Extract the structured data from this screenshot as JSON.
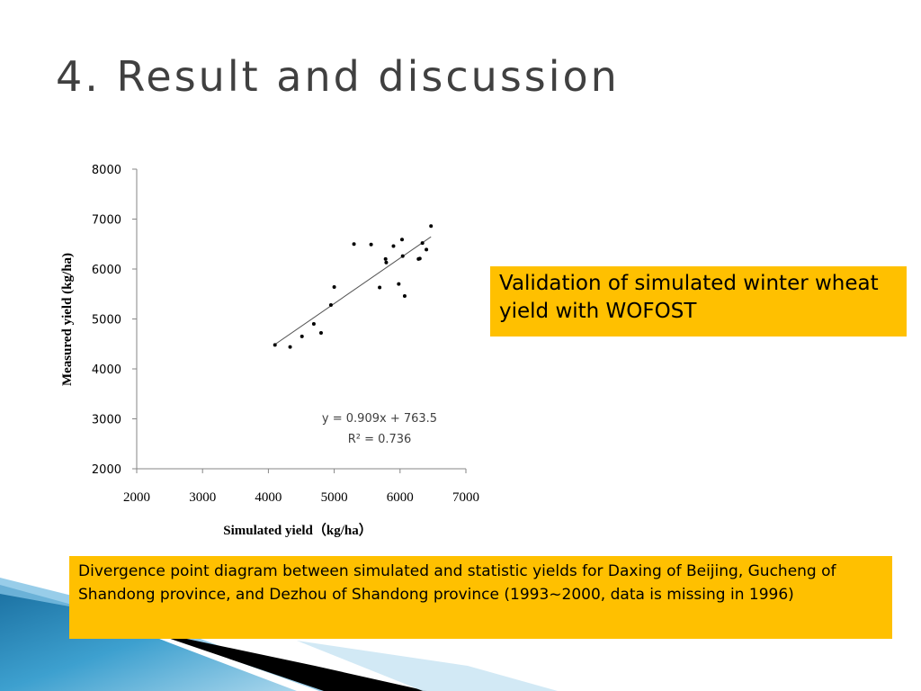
{
  "slide": {
    "title": "4. Result and discussion",
    "note": "Validation of simulated winter wheat yield with WOFOST",
    "caption": "Divergence point diagram between simulated and statistic yields for Daxing of Beijing, Gucheng of Shandong province, and Dezhou of Shandong province (1993~2000, data is missing in 1996)"
  },
  "colors": {
    "highlight_box": "#ffc000",
    "title_text": "#404040",
    "decor_blue": "#2b8ab8",
    "decor_black": "#000000"
  },
  "chart_data": {
    "type": "scatter",
    "title": "",
    "xlabel": "Simulated yield（kg/ha）",
    "ylabel": "Measured yield (kg/ha)",
    "xlim": [
      2000,
      7000
    ],
    "ylim": [
      2000,
      8000
    ],
    "xticks": [
      2000,
      3000,
      4000,
      5000,
      6000,
      7000
    ],
    "yticks": [
      2000,
      3000,
      4000,
      5000,
      6000,
      7000,
      8000
    ],
    "x_tick_labels": [
      "2000",
      "3000",
      "4000",
      "5000",
      "6000",
      "7000"
    ],
    "y_tick_labels": [
      "2000",
      "3000",
      "4000",
      "5000",
      "6000",
      "7000",
      "8000"
    ],
    "grid": false,
    "legend": "none",
    "points": [
      {
        "x": 4100,
        "y": 4480
      },
      {
        "x": 4330,
        "y": 4440
      },
      {
        "x": 4510,
        "y": 4650
      },
      {
        "x": 4690,
        "y": 4900
      },
      {
        "x": 4800,
        "y": 4720
      },
      {
        "x": 4950,
        "y": 5280
      },
      {
        "x": 5000,
        "y": 5640
      },
      {
        "x": 5300,
        "y": 6500
      },
      {
        "x": 5560,
        "y": 6490
      },
      {
        "x": 5690,
        "y": 5630
      },
      {
        "x": 5780,
        "y": 6200
      },
      {
        "x": 5790,
        "y": 6130
      },
      {
        "x": 5900,
        "y": 6460
      },
      {
        "x": 5980,
        "y": 5700
      },
      {
        "x": 6030,
        "y": 6590
      },
      {
        "x": 6040,
        "y": 6260
      },
      {
        "x": 6070,
        "y": 5460
      },
      {
        "x": 6280,
        "y": 6200
      },
      {
        "x": 6300,
        "y": 6210
      },
      {
        "x": 6340,
        "y": 6520
      },
      {
        "x": 6400,
        "y": 6390
      },
      {
        "x": 6470,
        "y": 6860
      }
    ],
    "trendline": {
      "slope": 0.909,
      "intercept": 763.5,
      "x_range": [
        4100,
        6470
      ]
    },
    "annotations": {
      "equation": "y = 0.909x + 763.5",
      "r_squared": "R² = 0.736"
    }
  }
}
